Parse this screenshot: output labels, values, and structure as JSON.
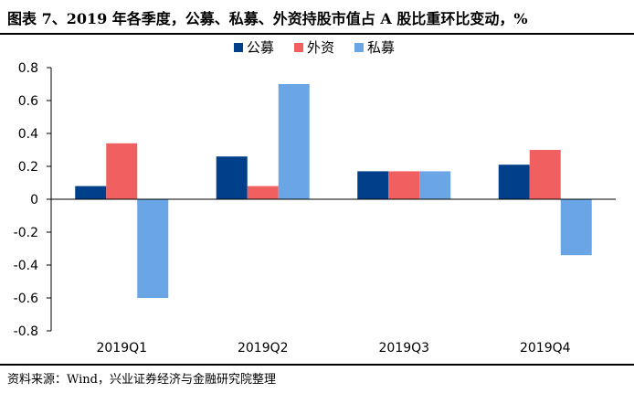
{
  "header": {
    "title": "图表 7、2019 年各季度，公募、私募、外资持股市值占 A 股比重环比变动，%"
  },
  "footer": {
    "source": "资料来源：Wind，兴业证券经济与金融研究院整理"
  },
  "chart_data": {
    "type": "bar",
    "title": "",
    "xlabel": "",
    "ylabel": "",
    "categories": [
      "2019Q1",
      "2019Q2",
      "2019Q3",
      "2019Q4"
    ],
    "ylim": [
      -0.8,
      0.8
    ],
    "yticks": [
      0.8,
      0.6,
      0.4,
      0.2,
      0,
      -0.2,
      -0.4,
      -0.6,
      -0.8
    ],
    "ytick_labels": [
      "0.8",
      "0.6",
      "0.4",
      "0.2",
      "0",
      "-0.2",
      "-0.4",
      "-0.6",
      "-0.8"
    ],
    "grid": false,
    "legend_position": "top-center",
    "series": [
      {
        "name": "公募",
        "color": "#003f8a",
        "values": [
          0.08,
          0.26,
          0.17,
          0.21
        ]
      },
      {
        "name": "外资",
        "color": "#f06060",
        "values": [
          0.34,
          0.08,
          0.17,
          0.3
        ]
      },
      {
        "name": "私募",
        "color": "#6aa6e6",
        "values": [
          -0.6,
          0.7,
          0.17,
          -0.34
        ]
      }
    ]
  }
}
